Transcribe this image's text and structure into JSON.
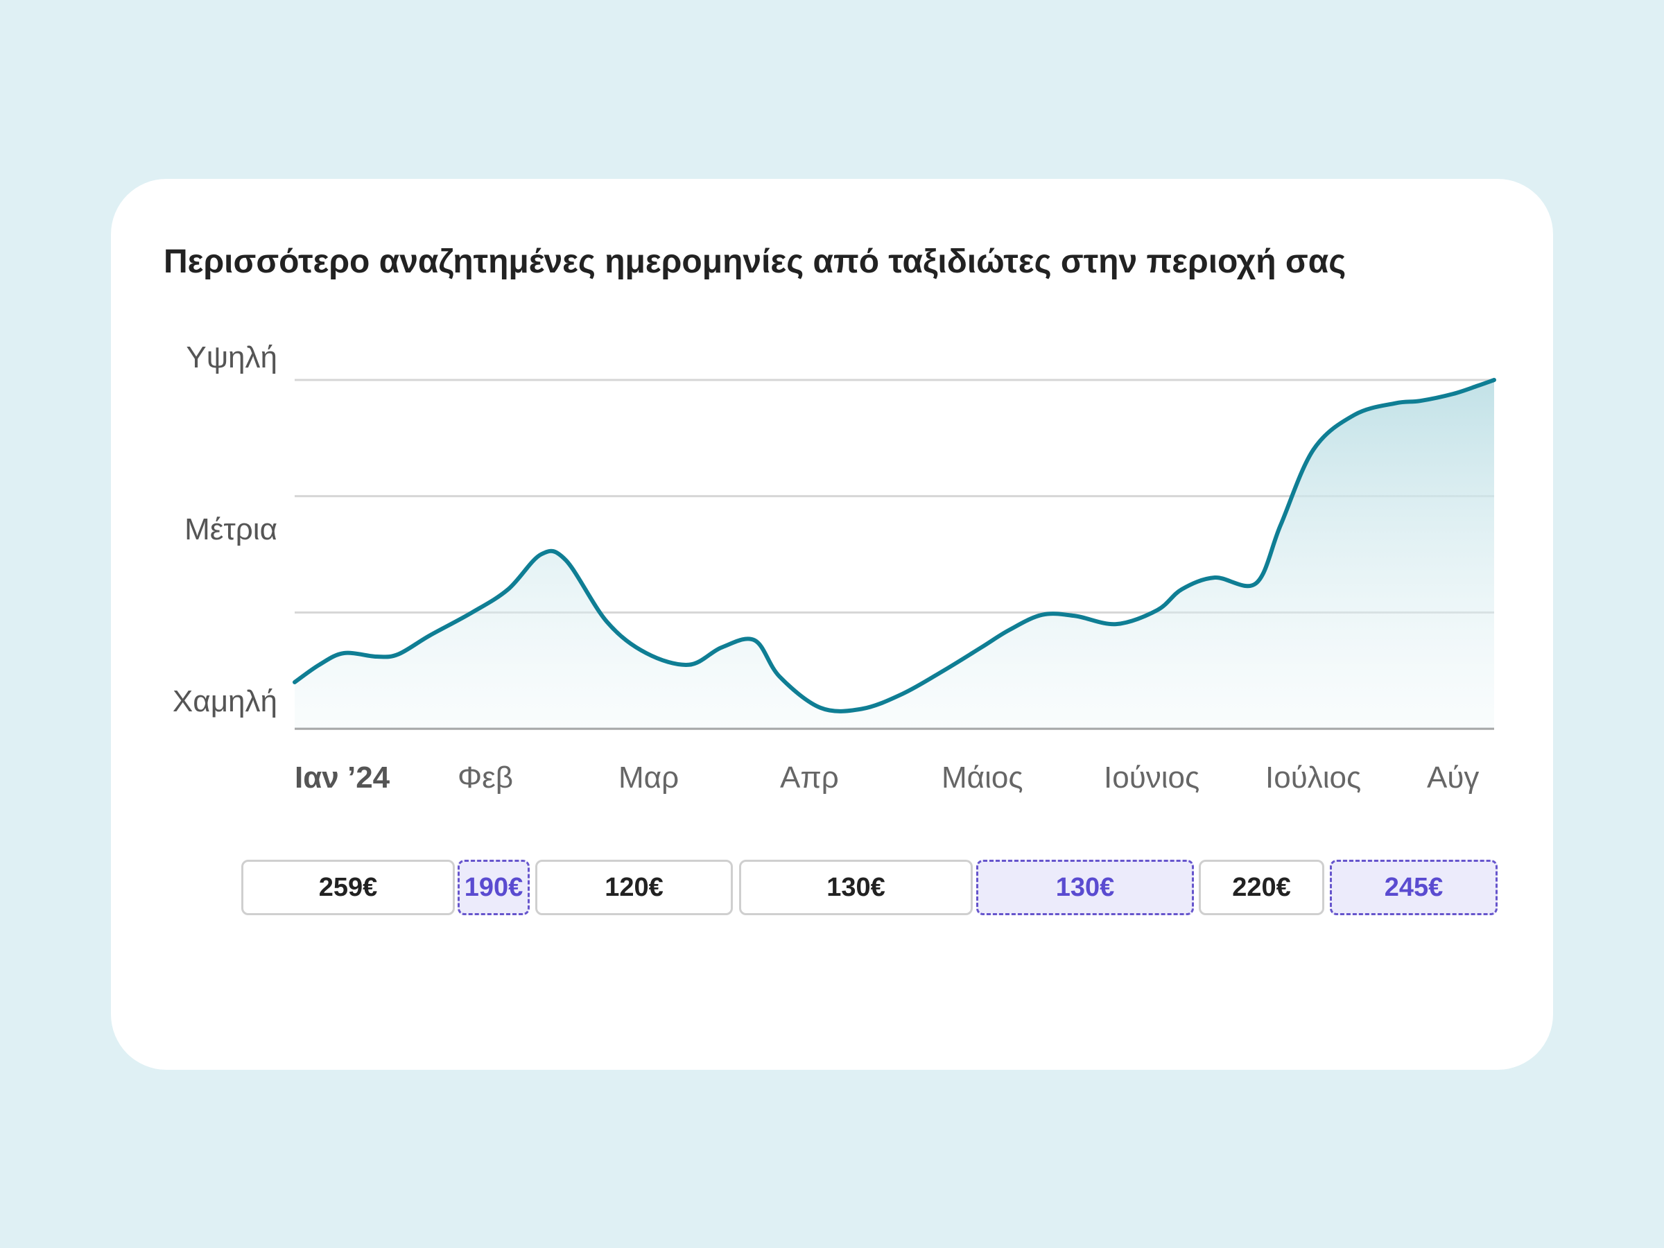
{
  "title": "Περισσότερο αναζητημένες ημερομηνίες από ταξιδιώτες στην περιοχή σας",
  "chart_data": {
    "type": "area",
    "title": "Περισσότερο αναζητημένες ημερομηνίες από ταξιδιώτες στην περιοχή σας",
    "x_ticks": [
      "Ιαν ’24",
      "Φεβ",
      "Μαρ",
      "Απρ",
      "Μάιος",
      "Ιούνιος",
      "Ιούλιος",
      "Αύγ"
    ],
    "y_levels": [
      "Υψηλή",
      "Μέτρια",
      "Χαμηλή"
    ],
    "ylim": [
      0,
      3
    ],
    "grid": true,
    "line_color": "#0f7e94",
    "fill_color": "#bfe0e6",
    "series": [
      {
        "x": [
          0,
          0.15,
          0.3,
          0.5,
          0.63,
          0.82,
          1.08,
          1.3,
          1.5,
          1.65,
          1.9,
          2.14,
          2.4,
          2.6,
          2.8,
          2.95,
          3.2,
          3.45,
          3.7,
          3.95,
          4.18,
          4.35,
          4.55,
          4.75,
          5.0,
          5.25,
          5.4,
          5.6,
          5.85,
          6.0,
          6.2,
          6.45,
          6.7,
          6.85,
          7.05,
          7.2,
          7.3
        ],
        "y": [
          0.4,
          0.55,
          0.65,
          0.62,
          0.64,
          0.8,
          1.0,
          1.2,
          1.5,
          1.45,
          0.92,
          0.65,
          0.55,
          0.7,
          0.76,
          0.45,
          0.18,
          0.17,
          0.3,
          0.5,
          0.7,
          0.85,
          0.98,
          0.97,
          0.9,
          1.02,
          1.2,
          1.3,
          1.25,
          1.75,
          2.4,
          2.7,
          2.8,
          2.82,
          2.88,
          2.95,
          3.0
        ]
      }
    ]
  },
  "prices": [
    {
      "label": "259€",
      "highlight": false
    },
    {
      "label": "190€",
      "highlight": true
    },
    {
      "label": "120€",
      "highlight": false
    },
    {
      "label": "130€",
      "highlight": false
    },
    {
      "label": "130€",
      "highlight": true
    },
    {
      "label": "220€",
      "highlight": false
    },
    {
      "label": "245€",
      "highlight": true
    }
  ]
}
